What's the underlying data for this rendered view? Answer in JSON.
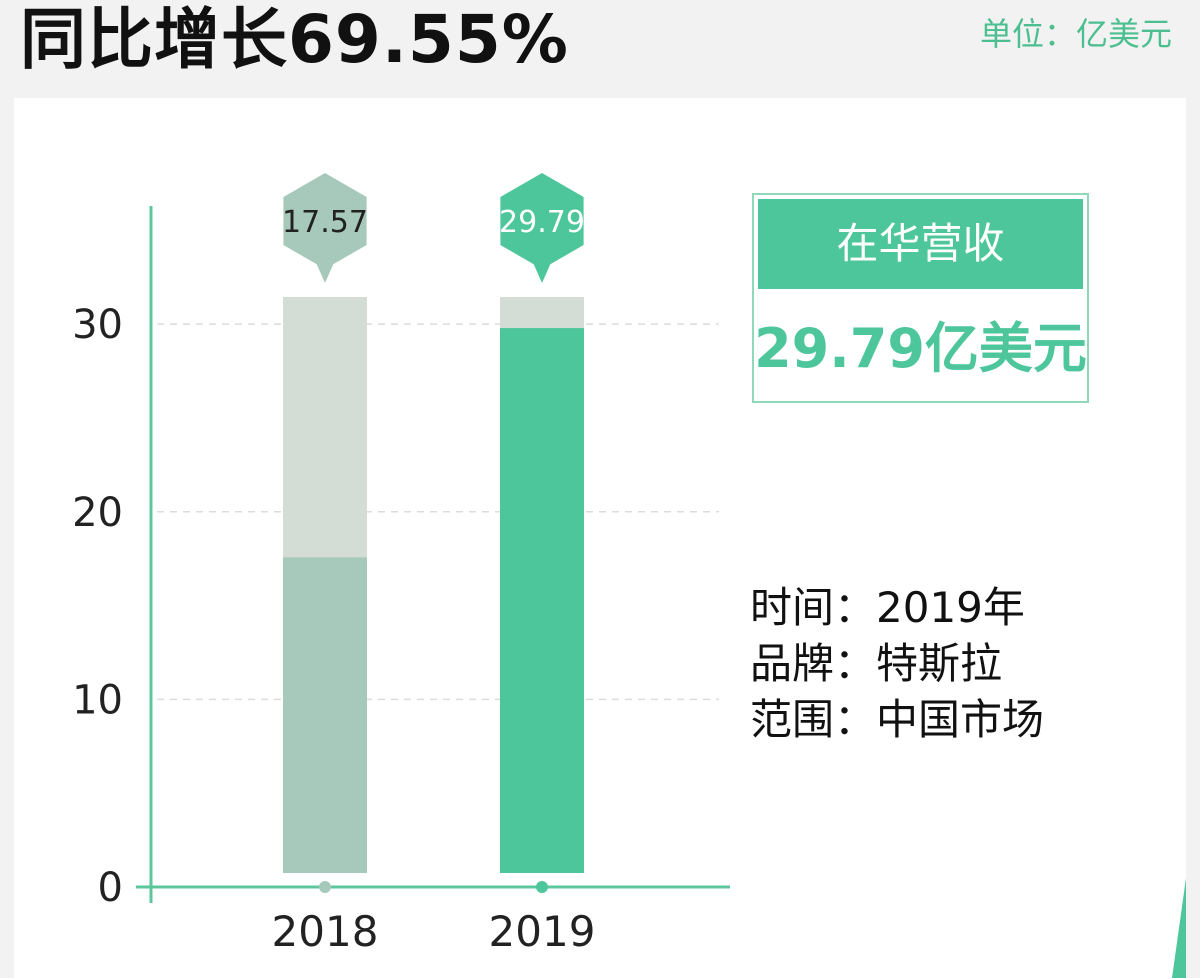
{
  "headline": "同比增长69.55%",
  "unit": "单位：亿美元",
  "card": {
    "title": "在华营收",
    "value": "29.79亿美元"
  },
  "info": [
    {
      "label": "时间：",
      "value": "2019年"
    },
    {
      "label": "品牌：",
      "value": "特斯拉"
    },
    {
      "label": "范围：",
      "value": "中国市场"
    }
  ],
  "colors": {
    "accent": "#4cc69a",
    "muted_bar": "#a7c9bc",
    "bar_track": "#d3ddd6",
    "axis": "#5cc79b"
  },
  "chart_data": {
    "type": "bar",
    "categories": [
      "2018",
      "2019"
    ],
    "values": [
      17.57,
      29.79
    ],
    "value_labels": [
      "17.57",
      "29.79"
    ],
    "bar_colors": [
      "#a7c9bc",
      "#4cc69a"
    ],
    "ylim": [
      0,
      31.5
    ],
    "yticks": [
      0,
      10,
      20,
      30
    ],
    "grid": true,
    "title": "",
    "xlabel": "",
    "ylabel": ""
  }
}
